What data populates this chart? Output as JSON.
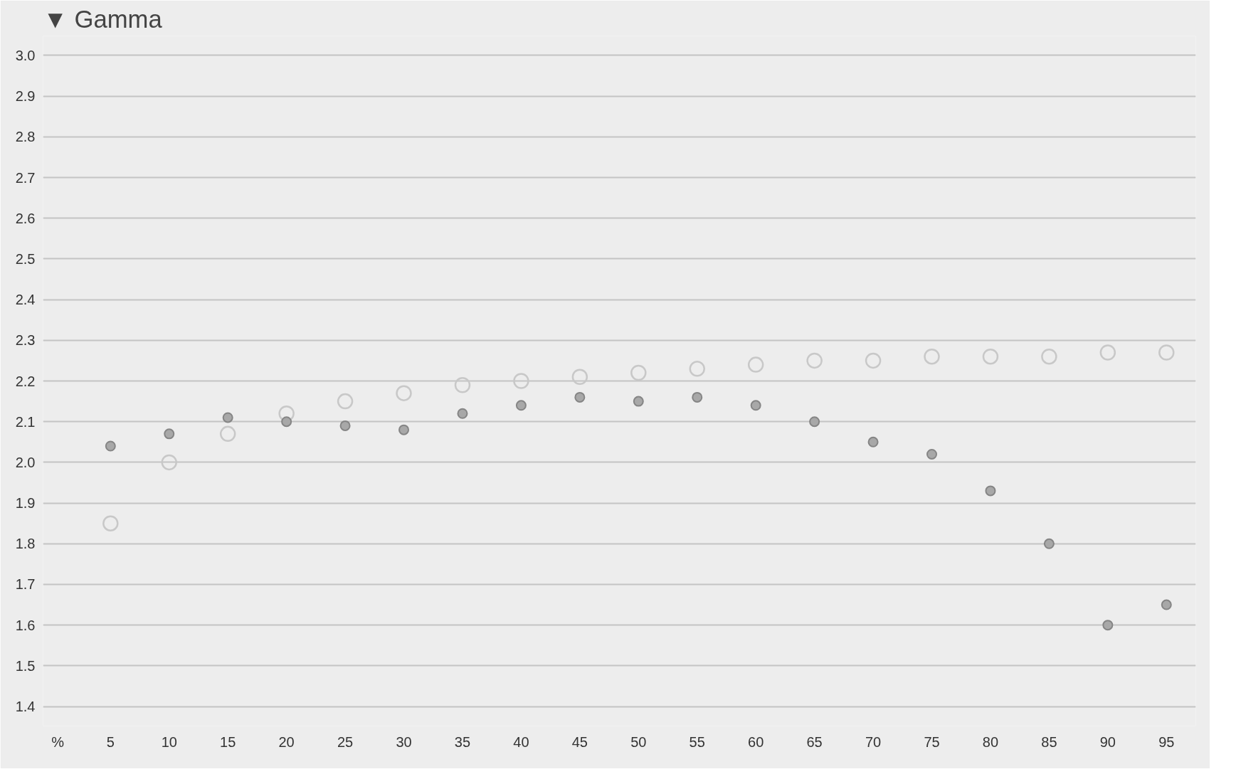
{
  "chart_data": {
    "type": "scatter",
    "title": "▼ Gamma",
    "xlabel": "%",
    "categories": [
      "5",
      "10",
      "15",
      "20",
      "25",
      "30",
      "35",
      "40",
      "45",
      "50",
      "55",
      "60",
      "65",
      "70",
      "75",
      "80",
      "85",
      "90",
      "95"
    ],
    "series": [
      {
        "color": "#c8c8c8",
        "values": [
          1.85,
          2.0,
          2.07,
          2.12,
          2.15,
          2.17,
          2.19,
          2.2,
          2.21,
          2.22,
          2.23,
          2.24,
          2.25,
          2.25,
          2.26,
          2.26,
          2.26,
          2.27,
          2.27
        ]
      },
      {
        "color": "#a8a8a8",
        "values": [
          2.04,
          2.07,
          2.11,
          2.1,
          2.09,
          2.08,
          2.12,
          2.14,
          2.16,
          2.15,
          2.16,
          2.14,
          2.1,
          2.05,
          2.02,
          1.93,
          1.8,
          1.6,
          1.65
        ]
      }
    ],
    "ylim": [
      1.4,
      3.0
    ],
    "yticks": [
      1.4,
      1.5,
      1.6,
      1.7,
      1.8,
      1.9,
      {
        "value": 2,
        "label": "2.0"
      },
      2.1,
      2.2,
      2.3,
      2.4,
      2.5,
      2.6,
      2.7,
      2.8,
      2.9,
      {
        "value": 3,
        "label": "3.0"
      }
    ],
    "grid": "y",
    "marker": "circle"
  }
}
